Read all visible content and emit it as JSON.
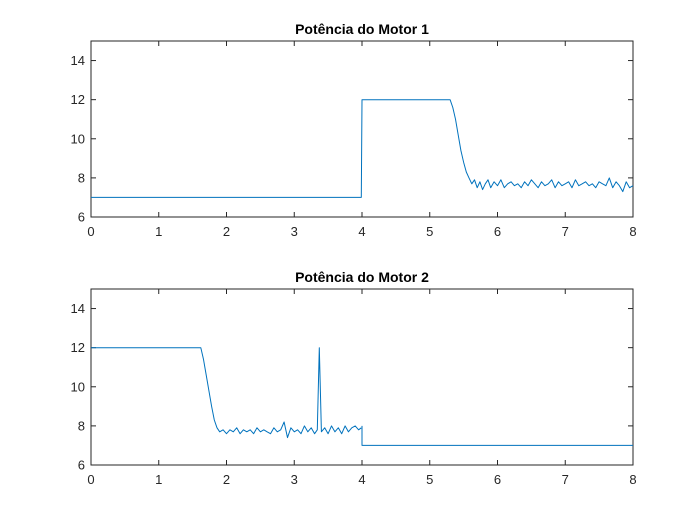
{
  "chart_data": [
    {
      "type": "line",
      "title": "Potência do Motor 1",
      "xlabel": "",
      "ylabel": "",
      "xlim": [
        0,
        8
      ],
      "ylim": [
        6,
        15
      ],
      "xticks": [
        0,
        1,
        2,
        3,
        4,
        5,
        6,
        7,
        8
      ],
      "yticks": [
        6,
        8,
        10,
        12,
        14
      ],
      "grid": false,
      "line_color": "#0072bd",
      "series": [
        {
          "segments": [
            {
              "x": [
                0,
                3.99,
                4.0,
                5.3,
                5.34,
                5.38,
                5.42,
                5.46,
                5.5,
                5.54,
                5.58,
                5.62,
                5.66,
                5.7,
                5.74,
                5.78,
                5.82,
                5.86,
                5.9,
                5.95,
                6.0,
                6.05,
                6.1,
                6.15,
                6.2,
                6.25,
                6.3,
                6.35,
                6.4,
                6.45,
                6.5,
                6.55,
                6.6,
                6.65,
                6.7,
                6.75,
                6.8,
                6.85,
                6.9,
                6.95,
                7.0,
                7.05,
                7.1,
                7.15,
                7.2,
                7.25,
                7.3,
                7.35,
                7.4,
                7.45,
                7.5,
                7.55,
                7.6,
                7.65,
                7.7,
                7.75,
                7.8,
                7.85,
                7.9,
                7.95,
                8.0
              ],
              "y": [
                7.0,
                7.0,
                12.0,
                12.0,
                11.6,
                11.0,
                10.2,
                9.4,
                8.8,
                8.3,
                8.0,
                7.7,
                7.9,
                7.5,
                7.8,
                7.4,
                7.7,
                7.9,
                7.5,
                7.8,
                7.6,
                7.9,
                7.5,
                7.7,
                7.8,
                7.6,
                7.7,
                7.5,
                7.8,
                7.6,
                7.9,
                7.7,
                7.5,
                7.8,
                7.6,
                7.7,
                7.9,
                7.5,
                7.8,
                7.6,
                7.7,
                7.8,
                7.5,
                7.9,
                7.6,
                7.7,
                7.8,
                7.6,
                7.7,
                7.5,
                7.8,
                7.7,
                7.6,
                8.0,
                7.5,
                7.8,
                7.6,
                7.3,
                7.8,
                7.5,
                7.6
              ]
            }
          ]
        }
      ]
    },
    {
      "type": "line",
      "title": "Potência do Motor 2",
      "xlabel": "",
      "ylabel": "",
      "xlim": [
        0,
        8
      ],
      "ylim": [
        6,
        15
      ],
      "xticks": [
        0,
        1,
        2,
        3,
        4,
        5,
        6,
        7,
        8
      ],
      "yticks": [
        6,
        8,
        10,
        12,
        14
      ],
      "grid": false,
      "line_color": "#0072bd",
      "series": [
        {
          "segments": [
            {
              "x": [
                0,
                1.62,
                1.66,
                1.7,
                1.74,
                1.78,
                1.82,
                1.86,
                1.9,
                1.95,
                2.0,
                2.05,
                2.1,
                2.15,
                2.2,
                2.25,
                2.3,
                2.35,
                2.4,
                2.45,
                2.5,
                2.55,
                2.6,
                2.65,
                2.7,
                2.75,
                2.8,
                2.85,
                2.9,
                2.95,
                3.0,
                3.05,
                3.1,
                3.15,
                3.2,
                3.25,
                3.3,
                3.34,
                3.37,
                3.4,
                3.45,
                3.5,
                3.55,
                3.6,
                3.65,
                3.7,
                3.75,
                3.8,
                3.85,
                3.9,
                3.95,
                3.99
              ],
              "y": [
                12.0,
                12.0,
                11.4,
                10.6,
                9.8,
                9.0,
                8.3,
                7.9,
                7.7,
                7.8,
                7.6,
                7.8,
                7.7,
                7.9,
                7.6,
                7.8,
                7.7,
                7.8,
                7.6,
                7.9,
                7.7,
                7.8,
                7.7,
                7.6,
                7.9,
                7.7,
                7.8,
                8.2,
                7.4,
                7.9,
                7.7,
                7.8,
                7.6,
                8.0,
                7.7,
                7.9,
                7.6,
                7.8,
                12.0,
                7.7,
                7.9,
                7.6,
                8.0,
                7.7,
                7.9,
                7.6,
                8.0,
                7.7,
                7.9,
                8.0,
                7.8,
                7.9
              ]
            },
            {
              "x": [
                4.0,
                4.0,
                8.0
              ],
              "y": [
                8.0,
                7.0,
                7.0
              ]
            }
          ]
        }
      ]
    }
  ]
}
